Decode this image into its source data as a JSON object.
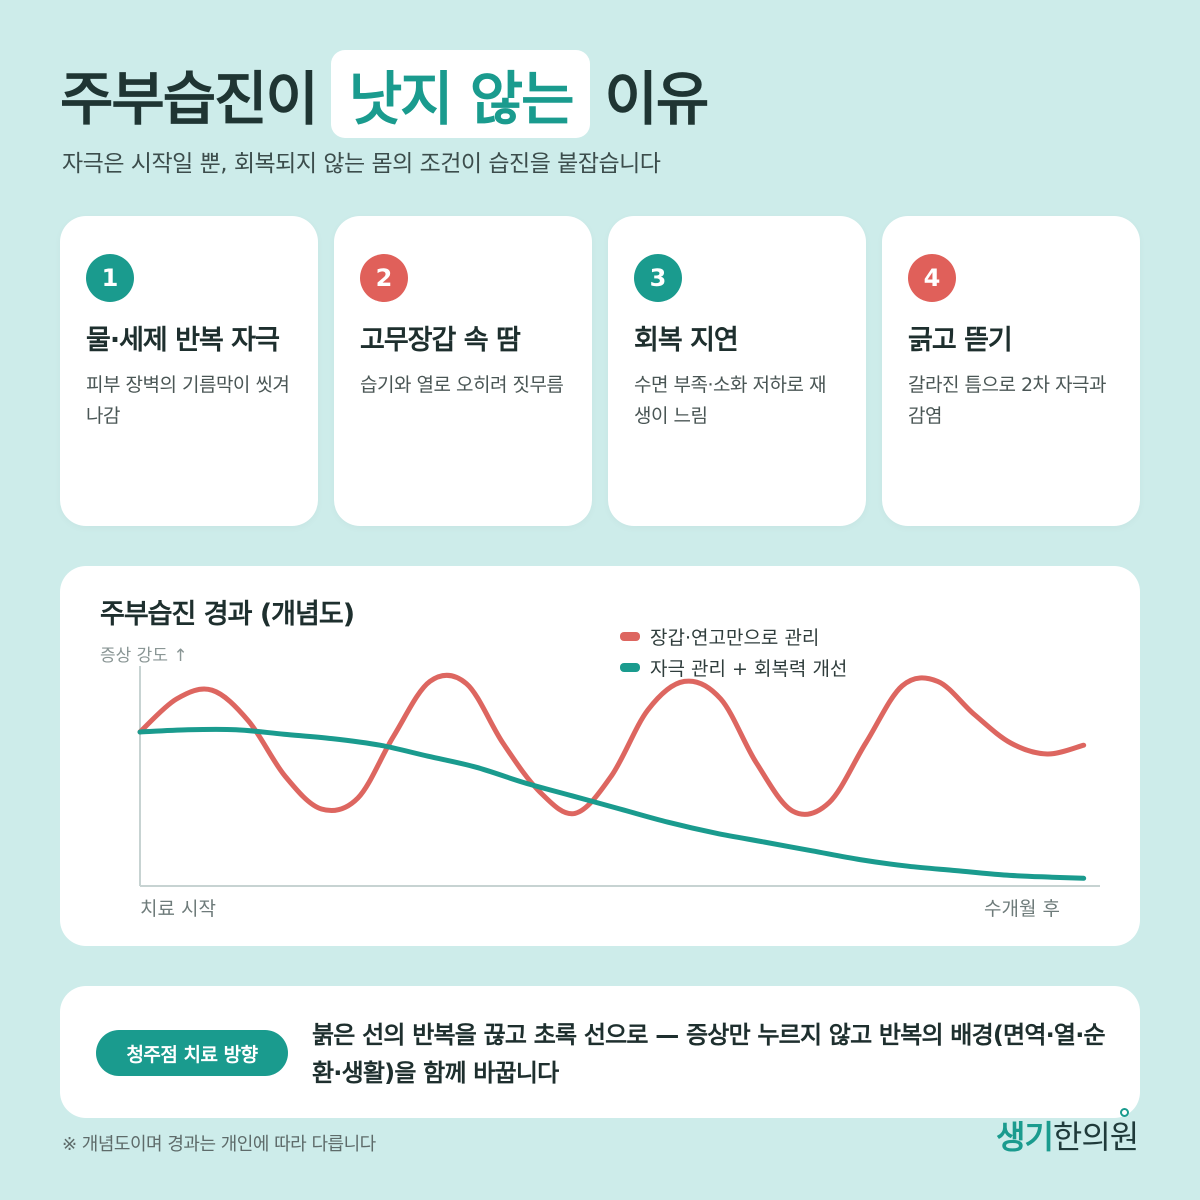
{
  "title": {
    "part1": "주부습진이",
    "highlight": "낫지 않는",
    "part2": "이유"
  },
  "subtitle": "자극은 시작일 뿐, 회복되지 않는 몸의 조건이 습진을 붙잡습니다",
  "cards": [
    {
      "num": "1",
      "title": "물·세제 반복 자극",
      "desc": "피부 장벽의 기름막이 씻겨 나감",
      "color": "#1a9b8e"
    },
    {
      "num": "2",
      "title": "고무장갑 속 땀",
      "desc": "습기와 열로 오히려 짓무름",
      "color": "#e0605a"
    },
    {
      "num": "3",
      "title": "회복 지연",
      "desc": "수면 부족·소화 저하로 재생이 느림",
      "color": "#1a9b8e"
    },
    {
      "num": "4",
      "title": "긁고 뜯기",
      "desc": "갈라진 틈으로 2차 자극과 감염",
      "color": "#e0605a"
    }
  ],
  "chart_data": {
    "type": "line",
    "title": "주부습진 경과 (개념도)",
    "ylabel": "증상 강도 ↑",
    "x_start_label": "치료 시작",
    "x_end_label": "수개월 후",
    "xlim": [
      0,
      10
    ],
    "ylim": [
      0,
      10
    ],
    "grid": false,
    "legend_position": "top-right",
    "series": [
      {
        "name": "장갑·연고만으로 관리",
        "color": "#dd6660",
        "x": [
          0,
          0.38,
          0.75,
          1.13,
          1.51,
          1.89,
          2.27,
          2.64,
          3.02,
          3.4,
          3.78,
          4.16,
          4.53,
          4.91,
          5.29,
          5.67,
          6.05,
          6.42,
          6.8,
          7.18,
          7.56,
          7.94,
          8.31,
          8.69,
          9.07,
          9.45,
          9.83
        ],
        "values": [
          7.0,
          8.5,
          8.9,
          7.5,
          5.0,
          3.5,
          4.0,
          6.8,
          9.3,
          9.2,
          6.5,
          4.3,
          3.3,
          5.0,
          8.0,
          9.3,
          8.5,
          5.6,
          3.4,
          3.8,
          6.5,
          9.1,
          9.3,
          7.8,
          6.5,
          6.0,
          6.4
        ]
      },
      {
        "name": "자극 관리 + 회복력 개선",
        "color": "#1a9b8e",
        "x": [
          0,
          0.5,
          1.0,
          1.5,
          2.0,
          2.5,
          3.0,
          3.5,
          4.0,
          4.5,
          5.0,
          5.5,
          6.0,
          6.5,
          7.0,
          7.5,
          8.0,
          8.5,
          9.0,
          9.5,
          9.83
        ],
        "values": [
          7.0,
          7.1,
          7.1,
          6.9,
          6.7,
          6.4,
          5.9,
          5.4,
          4.7,
          4.1,
          3.5,
          2.9,
          2.4,
          2.0,
          1.6,
          1.2,
          0.9,
          0.7,
          0.5,
          0.4,
          0.35
        ]
      }
    ]
  },
  "bottom": {
    "pill": "청주점 치료 방향",
    "text": "붉은 선의 반복을 끊고 초록 선으로 — 증상만 누르지 않고 반복의 배경(면역·열·순환·생활)을 함께 바꿉니다"
  },
  "footnote": "※ 개념도이며 경과는 개인에 따라 다릅니다",
  "logo": {
    "part_a": "생기",
    "part_b": "한의원"
  }
}
